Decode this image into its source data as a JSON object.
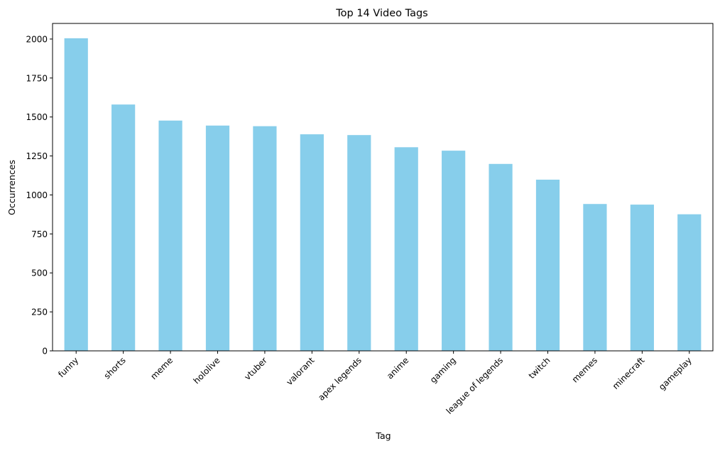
{
  "chart_data": {
    "type": "bar",
    "title": "Top 14 Video Tags",
    "xlabel": "Tag",
    "ylabel": "Occurrences",
    "categories": [
      "funny",
      "shorts",
      "meme",
      "hololive",
      "vtuber",
      "valorant",
      "apex legends",
      "anime",
      "gaming",
      "league of legends",
      "twitch",
      "memes",
      "minecraft",
      "gameplay"
    ],
    "values": [
      2005,
      1580,
      1477,
      1445,
      1441,
      1389,
      1384,
      1306,
      1284,
      1199,
      1098,
      942,
      938,
      876
    ],
    "ylim": [
      0,
      2100
    ],
    "yticks": [
      0,
      250,
      500,
      750,
      1000,
      1250,
      1500,
      1750,
      2000
    ],
    "grid": false,
    "bar_color": "#87CEEB"
  }
}
